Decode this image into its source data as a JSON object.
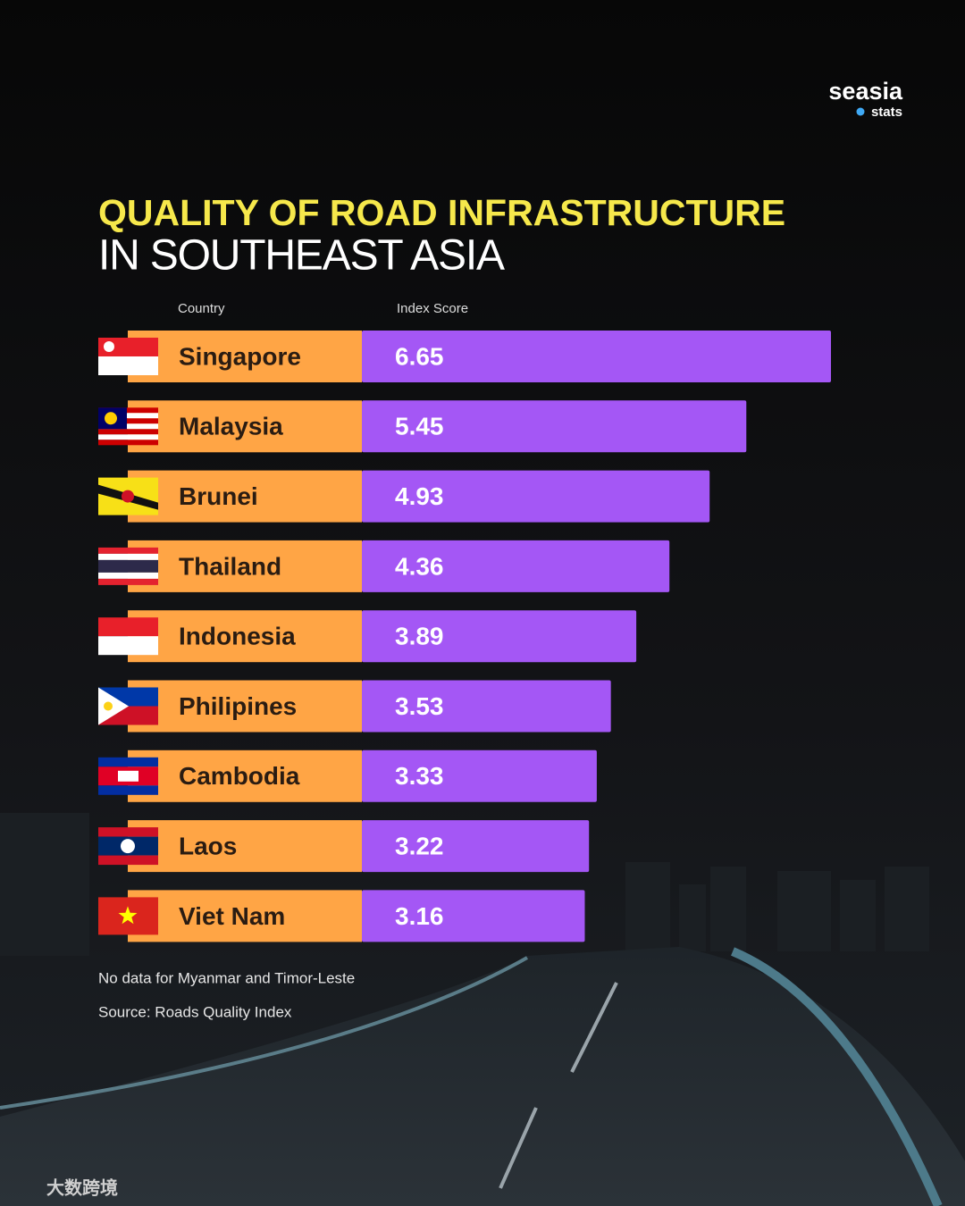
{
  "logo": {
    "name": "seasia",
    "sub": "stats"
  },
  "chart_data": {
    "type": "bar",
    "title": "QUALITY OF ROAD INFRASTRUCTURE",
    "subtitle": "IN SOUTHEAST ASIA",
    "category_header": "Country",
    "value_header": "Index Score",
    "categories": [
      "Singapore",
      "Malaysia",
      "Brunei",
      "Thailand",
      "Indonesia",
      "Philipines",
      "Cambodia",
      "Laos",
      "Viet Nam"
    ],
    "values": [
      6.65,
      5.45,
      4.93,
      4.36,
      3.89,
      3.53,
      3.33,
      3.22,
      3.16
    ],
    "color": "#a457f5",
    "label_color": "#ffa545",
    "notes": [
      "No data for Myanmar and Timor-Leste",
      "Source: Roads Quality Index"
    ]
  },
  "watermark": "大数跨境"
}
